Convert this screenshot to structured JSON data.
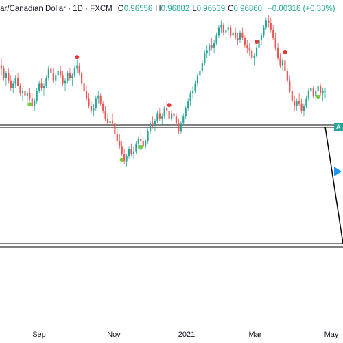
{
  "header": {
    "symbol": "llar/Canadian Dollar",
    "interval": "1D",
    "exchange": "FXCM",
    "open_label": "O",
    "open": "0.96556",
    "high_label": "H",
    "high": "0.96882",
    "low_label": "L",
    "low": "0.96539",
    "close_label": "C",
    "close": "0.96860",
    "change": "+0.00316 (+0.33%)"
  },
  "x_axis": {
    "labels": [
      "Sep",
      "Nov",
      "2021",
      "Mar",
      "May"
    ]
  },
  "price_tag": "A",
  "colors": {
    "up": "#26a69a",
    "down": "#ef5350",
    "text": "#131722",
    "marker_green": "#7ac943",
    "marker_red": "#e53935",
    "play": "#2196f3"
  },
  "chart_data": {
    "type": "candlestick",
    "x_axis_labels": [
      "Sep",
      "Nov",
      "2021",
      "Mar",
      "May"
    ],
    "last": {
      "open": 0.96556,
      "high": 0.96882,
      "low": 0.96539,
      "close": 0.9686
    },
    "ylim": [
      0.0,
      1.0
    ],
    "candles": [
      {
        "o": 0.8,
        "h": 0.83,
        "l": 0.76,
        "c": 0.79
      },
      {
        "o": 0.79,
        "h": 0.8,
        "l": 0.74,
        "c": 0.75
      },
      {
        "o": 0.75,
        "h": 0.78,
        "l": 0.72,
        "c": 0.77
      },
      {
        "o": 0.77,
        "h": 0.79,
        "l": 0.73,
        "c": 0.74
      },
      {
        "o": 0.74,
        "h": 0.76,
        "l": 0.7,
        "c": 0.71
      },
      {
        "o": 0.71,
        "h": 0.74,
        "l": 0.69,
        "c": 0.73
      },
      {
        "o": 0.73,
        "h": 0.76,
        "l": 0.71,
        "c": 0.75
      },
      {
        "o": 0.75,
        "h": 0.77,
        "l": 0.72,
        "c": 0.72
      },
      {
        "o": 0.72,
        "h": 0.73,
        "l": 0.68,
        "c": 0.69
      },
      {
        "o": 0.69,
        "h": 0.71,
        "l": 0.66,
        "c": 0.7
      },
      {
        "o": 0.7,
        "h": 0.72,
        "l": 0.67,
        "c": 0.68
      },
      {
        "o": 0.68,
        "h": 0.7,
        "l": 0.65,
        "c": 0.69
      },
      {
        "o": 0.69,
        "h": 0.71,
        "l": 0.66,
        "c": 0.67
      },
      {
        "o": 0.67,
        "h": 0.69,
        "l": 0.63,
        "c": 0.64
      },
      {
        "o": 0.64,
        "h": 0.67,
        "l": 0.62,
        "c": 0.66
      },
      {
        "o": 0.66,
        "h": 0.71,
        "l": 0.65,
        "c": 0.7
      },
      {
        "o": 0.7,
        "h": 0.74,
        "l": 0.69,
        "c": 0.73
      },
      {
        "o": 0.73,
        "h": 0.75,
        "l": 0.7,
        "c": 0.71
      },
      {
        "o": 0.71,
        "h": 0.73,
        "l": 0.68,
        "c": 0.72
      },
      {
        "o": 0.72,
        "h": 0.76,
        "l": 0.71,
        "c": 0.75
      },
      {
        "o": 0.75,
        "h": 0.8,
        "l": 0.74,
        "c": 0.79
      },
      {
        "o": 0.79,
        "h": 0.81,
        "l": 0.76,
        "c": 0.77
      },
      {
        "o": 0.77,
        "h": 0.79,
        "l": 0.73,
        "c": 0.74
      },
      {
        "o": 0.74,
        "h": 0.77,
        "l": 0.72,
        "c": 0.76
      },
      {
        "o": 0.76,
        "h": 0.79,
        "l": 0.74,
        "c": 0.78
      },
      {
        "o": 0.78,
        "h": 0.8,
        "l": 0.75,
        "c": 0.76
      },
      {
        "o": 0.76,
        "h": 0.78,
        "l": 0.72,
        "c": 0.73
      },
      {
        "o": 0.73,
        "h": 0.75,
        "l": 0.7,
        "c": 0.74
      },
      {
        "o": 0.74,
        "h": 0.78,
        "l": 0.73,
        "c": 0.77
      },
      {
        "o": 0.77,
        "h": 0.79,
        "l": 0.74,
        "c": 0.75
      },
      {
        "o": 0.75,
        "h": 0.77,
        "l": 0.72,
        "c": 0.76
      },
      {
        "o": 0.76,
        "h": 0.8,
        "l": 0.75,
        "c": 0.79
      },
      {
        "o": 0.79,
        "h": 0.82,
        "l": 0.77,
        "c": 0.8
      },
      {
        "o": 0.8,
        "h": 0.81,
        "l": 0.76,
        "c": 0.77
      },
      {
        "o": 0.77,
        "h": 0.78,
        "l": 0.72,
        "c": 0.73
      },
      {
        "o": 0.73,
        "h": 0.75,
        "l": 0.69,
        "c": 0.7
      },
      {
        "o": 0.7,
        "h": 0.72,
        "l": 0.66,
        "c": 0.67
      },
      {
        "o": 0.67,
        "h": 0.69,
        "l": 0.63,
        "c": 0.64
      },
      {
        "o": 0.64,
        "h": 0.66,
        "l": 0.61,
        "c": 0.62
      },
      {
        "o": 0.62,
        "h": 0.65,
        "l": 0.6,
        "c": 0.63
      },
      {
        "o": 0.63,
        "h": 0.68,
        "l": 0.62,
        "c": 0.67
      },
      {
        "o": 0.67,
        "h": 0.7,
        "l": 0.65,
        "c": 0.68
      },
      {
        "o": 0.68,
        "h": 0.69,
        "l": 0.64,
        "c": 0.65
      },
      {
        "o": 0.65,
        "h": 0.66,
        "l": 0.61,
        "c": 0.62
      },
      {
        "o": 0.62,
        "h": 0.64,
        "l": 0.58,
        "c": 0.59
      },
      {
        "o": 0.59,
        "h": 0.61,
        "l": 0.56,
        "c": 0.57
      },
      {
        "o": 0.57,
        "h": 0.6,
        "l": 0.55,
        "c": 0.58
      },
      {
        "o": 0.58,
        "h": 0.61,
        "l": 0.56,
        "c": 0.57
      },
      {
        "o": 0.57,
        "h": 0.58,
        "l": 0.52,
        "c": 0.53
      },
      {
        "o": 0.53,
        "h": 0.55,
        "l": 0.49,
        "c": 0.5
      },
      {
        "o": 0.5,
        "h": 0.53,
        "l": 0.47,
        "c": 0.48
      },
      {
        "o": 0.48,
        "h": 0.5,
        "l": 0.44,
        "c": 0.45
      },
      {
        "o": 0.45,
        "h": 0.47,
        "l": 0.41,
        "c": 0.42
      },
      {
        "o": 0.42,
        "h": 0.45,
        "l": 0.4,
        "c": 0.44
      },
      {
        "o": 0.44,
        "h": 0.48,
        "l": 0.43,
        "c": 0.47
      },
      {
        "o": 0.47,
        "h": 0.49,
        "l": 0.44,
        "c": 0.45
      },
      {
        "o": 0.45,
        "h": 0.48,
        "l": 0.43,
        "c": 0.46
      },
      {
        "o": 0.46,
        "h": 0.5,
        "l": 0.45,
        "c": 0.49
      },
      {
        "o": 0.49,
        "h": 0.52,
        "l": 0.47,
        "c": 0.51
      },
      {
        "o": 0.51,
        "h": 0.54,
        "l": 0.49,
        "c": 0.5
      },
      {
        "o": 0.5,
        "h": 0.52,
        "l": 0.47,
        "c": 0.48
      },
      {
        "o": 0.48,
        "h": 0.51,
        "l": 0.47,
        "c": 0.5
      },
      {
        "o": 0.5,
        "h": 0.55,
        "l": 0.49,
        "c": 0.54
      },
      {
        "o": 0.54,
        "h": 0.58,
        "l": 0.53,
        "c": 0.57
      },
      {
        "o": 0.57,
        "h": 0.6,
        "l": 0.55,
        "c": 0.56
      },
      {
        "o": 0.56,
        "h": 0.59,
        "l": 0.54,
        "c": 0.58
      },
      {
        "o": 0.58,
        "h": 0.62,
        "l": 0.57,
        "c": 0.61
      },
      {
        "o": 0.61,
        "h": 0.63,
        "l": 0.58,
        "c": 0.59
      },
      {
        "o": 0.59,
        "h": 0.61,
        "l": 0.56,
        "c": 0.6
      },
      {
        "o": 0.6,
        "h": 0.64,
        "l": 0.59,
        "c": 0.63
      },
      {
        "o": 0.63,
        "h": 0.66,
        "l": 0.61,
        "c": 0.62
      },
      {
        "o": 0.62,
        "h": 0.63,
        "l": 0.58,
        "c": 0.59
      },
      {
        "o": 0.59,
        "h": 0.62,
        "l": 0.58,
        "c": 0.61
      },
      {
        "o": 0.61,
        "h": 0.64,
        "l": 0.59,
        "c": 0.6
      },
      {
        "o": 0.6,
        "h": 0.61,
        "l": 0.56,
        "c": 0.57
      },
      {
        "o": 0.57,
        "h": 0.59,
        "l": 0.53,
        "c": 0.54
      },
      {
        "o": 0.54,
        "h": 0.58,
        "l": 0.53,
        "c": 0.57
      },
      {
        "o": 0.57,
        "h": 0.61,
        "l": 0.56,
        "c": 0.6
      },
      {
        "o": 0.6,
        "h": 0.64,
        "l": 0.59,
        "c": 0.63
      },
      {
        "o": 0.63,
        "h": 0.67,
        "l": 0.62,
        "c": 0.66
      },
      {
        "o": 0.66,
        "h": 0.7,
        "l": 0.64,
        "c": 0.69
      },
      {
        "o": 0.69,
        "h": 0.72,
        "l": 0.67,
        "c": 0.7
      },
      {
        "o": 0.7,
        "h": 0.74,
        "l": 0.69,
        "c": 0.73
      },
      {
        "o": 0.73,
        "h": 0.77,
        "l": 0.72,
        "c": 0.76
      },
      {
        "o": 0.76,
        "h": 0.79,
        "l": 0.74,
        "c": 0.78
      },
      {
        "o": 0.78,
        "h": 0.82,
        "l": 0.77,
        "c": 0.81
      },
      {
        "o": 0.81,
        "h": 0.86,
        "l": 0.8,
        "c": 0.85
      },
      {
        "o": 0.85,
        "h": 0.88,
        "l": 0.83,
        "c": 0.86
      },
      {
        "o": 0.86,
        "h": 0.89,
        "l": 0.84,
        "c": 0.88
      },
      {
        "o": 0.88,
        "h": 0.91,
        "l": 0.86,
        "c": 0.87
      },
      {
        "o": 0.87,
        "h": 0.9,
        "l": 0.85,
        "c": 0.89
      },
      {
        "o": 0.89,
        "h": 0.93,
        "l": 0.88,
        "c": 0.92
      },
      {
        "o": 0.92,
        "h": 0.96,
        "l": 0.91,
        "c": 0.95
      },
      {
        "o": 0.95,
        "h": 0.98,
        "l": 0.93,
        "c": 0.96
      },
      {
        "o": 0.96,
        "h": 0.97,
        "l": 0.92,
        "c": 0.93
      },
      {
        "o": 0.93,
        "h": 0.95,
        "l": 0.9,
        "c": 0.94
      },
      {
        "o": 0.94,
        "h": 0.97,
        "l": 0.92,
        "c": 0.95
      },
      {
        "o": 0.95,
        "h": 0.96,
        "l": 0.91,
        "c": 0.92
      },
      {
        "o": 0.92,
        "h": 0.94,
        "l": 0.89,
        "c": 0.93
      },
      {
        "o": 0.93,
        "h": 0.95,
        "l": 0.9,
        "c": 0.91
      },
      {
        "o": 0.91,
        "h": 0.93,
        "l": 0.88,
        "c": 0.9
      },
      {
        "o": 0.9,
        "h": 0.94,
        "l": 0.89,
        "c": 0.93
      },
      {
        "o": 0.93,
        "h": 0.95,
        "l": 0.9,
        "c": 0.91
      },
      {
        "o": 0.91,
        "h": 0.92,
        "l": 0.87,
        "c": 0.88
      },
      {
        "o": 0.88,
        "h": 0.9,
        "l": 0.85,
        "c": 0.87
      },
      {
        "o": 0.87,
        "h": 0.89,
        "l": 0.84,
        "c": 0.86
      },
      {
        "o": 0.86,
        "h": 0.87,
        "l": 0.82,
        "c": 0.83
      },
      {
        "o": 0.83,
        "h": 0.85,
        "l": 0.8,
        "c": 0.84
      },
      {
        "o": 0.84,
        "h": 0.88,
        "l": 0.83,
        "c": 0.87
      },
      {
        "o": 0.87,
        "h": 0.91,
        "l": 0.86,
        "c": 0.9
      },
      {
        "o": 0.9,
        "h": 0.93,
        "l": 0.88,
        "c": 0.92
      },
      {
        "o": 0.92,
        "h": 0.96,
        "l": 0.91,
        "c": 0.95
      },
      {
        "o": 0.95,
        "h": 0.99,
        "l": 0.94,
        "c": 0.98
      },
      {
        "o": 0.98,
        "h": 1.0,
        "l": 0.95,
        "c": 0.97
      },
      {
        "o": 0.97,
        "h": 0.99,
        "l": 0.93,
        "c": 0.94
      },
      {
        "o": 0.94,
        "h": 0.96,
        "l": 0.9,
        "c": 0.91
      },
      {
        "o": 0.91,
        "h": 0.93,
        "l": 0.86,
        "c": 0.87
      },
      {
        "o": 0.87,
        "h": 0.89,
        "l": 0.82,
        "c": 0.83
      },
      {
        "o": 0.83,
        "h": 0.85,
        "l": 0.79,
        "c": 0.8
      },
      {
        "o": 0.8,
        "h": 0.83,
        "l": 0.78,
        "c": 0.82
      },
      {
        "o": 0.82,
        "h": 0.84,
        "l": 0.77,
        "c": 0.78
      },
      {
        "o": 0.78,
        "h": 0.79,
        "l": 0.73,
        "c": 0.74
      },
      {
        "o": 0.74,
        "h": 0.76,
        "l": 0.69,
        "c": 0.7
      },
      {
        "o": 0.7,
        "h": 0.72,
        "l": 0.65,
        "c": 0.66
      },
      {
        "o": 0.66,
        "h": 0.68,
        "l": 0.62,
        "c": 0.64
      },
      {
        "o": 0.64,
        "h": 0.67,
        "l": 0.62,
        "c": 0.66
      },
      {
        "o": 0.66,
        "h": 0.69,
        "l": 0.64,
        "c": 0.65
      },
      {
        "o": 0.65,
        "h": 0.67,
        "l": 0.61,
        "c": 0.62
      },
      {
        "o": 0.62,
        "h": 0.65,
        "l": 0.6,
        "c": 0.64
      },
      {
        "o": 0.64,
        "h": 0.68,
        "l": 0.63,
        "c": 0.67
      },
      {
        "o": 0.67,
        "h": 0.71,
        "l": 0.66,
        "c": 0.7
      },
      {
        "o": 0.7,
        "h": 0.73,
        "l": 0.67,
        "c": 0.71
      },
      {
        "o": 0.71,
        "h": 0.72,
        "l": 0.67,
        "c": 0.68
      },
      {
        "o": 0.68,
        "h": 0.71,
        "l": 0.66,
        "c": 0.7
      },
      {
        "o": 0.7,
        "h": 0.74,
        "l": 0.69,
        "c": 0.72
      },
      {
        "o": 0.72,
        "h": 0.73,
        "l": 0.68,
        "c": 0.69
      },
      {
        "o": 0.69,
        "h": 0.71,
        "l": 0.66,
        "c": 0.7
      },
      {
        "o": 0.7,
        "h": 0.71,
        "l": 0.67,
        "c": 0.7
      }
    ],
    "markers": [
      {
        "type": "low",
        "index": 12
      },
      {
        "type": "high",
        "index": 32
      },
      {
        "type": "low",
        "index": 51
      },
      {
        "type": "low",
        "index": 59
      },
      {
        "type": "high",
        "index": 71
      },
      {
        "type": "high",
        "index": 108
      },
      {
        "type": "high",
        "index": 120
      },
      {
        "type": "low",
        "index": 134
      }
    ]
  }
}
